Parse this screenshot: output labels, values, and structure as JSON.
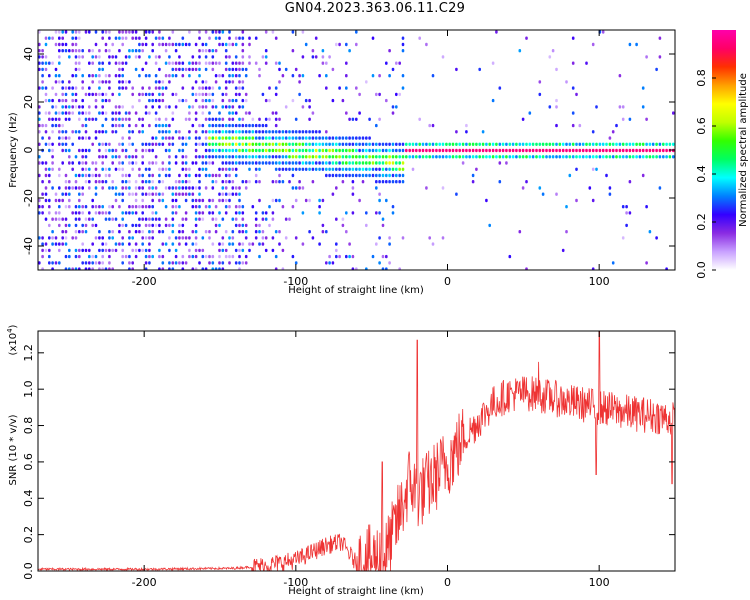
{
  "title": "GN04.2023.363.06.11.C29",
  "chart_data": [
    {
      "type": "heatmap",
      "panel": "spectrogram",
      "xlabel": "Height of straight line (km)",
      "ylabel": "Frequency (Hz)",
      "xlim": [
        -270,
        150
      ],
      "ylim": [
        -50,
        50
      ],
      "x_ticks": [
        -200,
        -100,
        0,
        100
      ],
      "x_tick_labels": [
        "-200",
        "-100",
        "0",
        "100"
      ],
      "y_ticks": [
        -40,
        -20,
        0,
        20,
        40
      ],
      "y_tick_labels": [
        "-40",
        "-20",
        "0",
        "20",
        "40"
      ],
      "colorbar": {
        "label": "Normalized spectral amplitude",
        "range": [
          0,
          1
        ],
        "ticks": [
          0.0,
          0.2,
          0.4,
          0.6,
          0.8
        ],
        "tick_labels": [
          "0.0",
          "0.2",
          "0.4",
          "0.6",
          "0.8"
        ],
        "colors": [
          "#ffffff",
          "#c8a0ff",
          "#8a2be2",
          "#3300ff",
          "#0080ff",
          "#00ffff",
          "#00ff60",
          "#33ff00",
          "#c0ff00",
          "#ffff00",
          "#ffa000",
          "#ff3000",
          "#ff0066",
          "#ff00aa"
        ]
      },
      "features": [
        {
          "x_range": [
            -270,
            -135
          ],
          "freq_range": [
            -50,
            50
          ],
          "level": "noise, low amplitude (purple/blue)"
        },
        {
          "x_range": [
            -135,
            -30
          ],
          "center_freq": [
            4,
            -15
          ],
          "level": "signal band, blue to green"
        },
        {
          "x_range": [
            -30,
            150
          ],
          "center_freq": [
            0,
            0
          ],
          "level": "narrow band at 0 Hz, red/magenta (near 1.0)"
        }
      ],
      "grid": false
    },
    {
      "type": "line",
      "panel": "snr",
      "xlabel": "Height of straight line (km)",
      "ylabel": "SNR (10 * v/v)",
      "y_multiplier": "(x10^4)",
      "xlim": [
        -270,
        150
      ],
      "ylim": [
        0,
        1.32
      ],
      "x_ticks": [
        -200,
        -100,
        0,
        100
      ],
      "x_tick_labels": [
        "-200",
        "-100",
        "0",
        "100"
      ],
      "y_ticks": [
        0.0,
        0.2,
        0.4,
        0.6,
        0.8,
        1.0,
        1.2
      ],
      "y_tick_labels": [
        "0.0",
        "0.2",
        "0.4",
        "0.6",
        "0.8",
        "1.0",
        "1.2"
      ],
      "color": "#ee3333",
      "trend": {
        "x": [
          -270,
          -200,
          -140,
          -120,
          -100,
          -80,
          -70,
          -60,
          -50,
          -40,
          -30,
          -25,
          -20,
          -15,
          -10,
          -5,
          0,
          10,
          20,
          30,
          40,
          50,
          60,
          80,
          100,
          120,
          140,
          150
        ],
        "y": [
          0.01,
          0.01,
          0.015,
          0.03,
          0.06,
          0.14,
          0.16,
          0.04,
          0.06,
          0.1,
          0.35,
          0.5,
          0.42,
          0.45,
          0.5,
          0.55,
          0.6,
          0.72,
          0.82,
          0.92,
          0.97,
          0.98,
          0.97,
          0.93,
          0.9,
          0.87,
          0.85,
          0.83
        ]
      },
      "peaks": [
        {
          "x": -20,
          "y": 1.27
        },
        {
          "x": -43,
          "y": 0.6
        },
        {
          "x": 60,
          "y": 1.15
        },
        {
          "x": 100,
          "y": 1.32
        },
        {
          "x": 98,
          "y": 0.53
        },
        {
          "x": 148,
          "y": 0.48
        }
      ],
      "grid": false
    }
  ]
}
